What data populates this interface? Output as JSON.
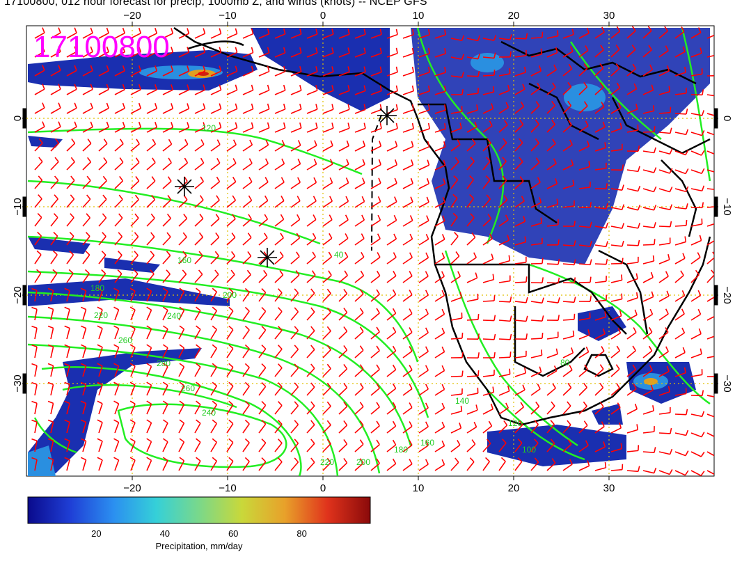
{
  "title": "17100800, 012 hour forecast for precip, 1000mb Z, and winds (knots) -- NCEP GFS",
  "stamp": "17100800",
  "axes": {
    "x_ticks_top": [
      "−20",
      "−10",
      "0",
      "10",
      "20",
      "30"
    ],
    "x_ticks_bottom": [
      "−20",
      "−10",
      "0",
      "10",
      "20",
      "30"
    ],
    "y_ticks_left": [
      "0",
      "−10",
      "−20",
      "−30"
    ],
    "y_ticks_right": [
      "0",
      "−10",
      "−20",
      "−30"
    ]
  },
  "contour_labels": [
    "120",
    "40",
    "160",
    "180",
    "200",
    "220",
    "240",
    "260",
    "280",
    "260",
    "240",
    "220",
    "200",
    "180",
    "160",
    "140",
    "120",
    "100",
    "80"
  ],
  "colorbar": {
    "label": "Precipitation, mm/day",
    "ticks": [
      "20",
      "40",
      "60",
      "80"
    ],
    "colors": [
      "#0a0a8c",
      "#1f3fd6",
      "#2b8ff0",
      "#35d0d8",
      "#7ad88a",
      "#c9d83a",
      "#e8a12a",
      "#e0331c",
      "#8a0a0a"
    ]
  },
  "colors": {
    "wind_barbs": "#ff0000",
    "contours": "#22ee22",
    "coastlines": "#000000",
    "grid": "#e0c000",
    "stamp": "#ff00ff",
    "precip_low": "#1a2fb0"
  }
}
